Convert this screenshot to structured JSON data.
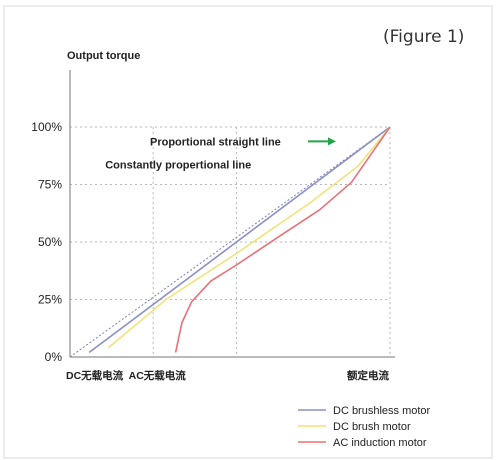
{
  "figure_label": "(Figure 1)",
  "chart_data": {
    "type": "line",
    "title": "",
    "ylabel": "Output torque",
    "xlabel": "",
    "ylim": [
      0,
      100
    ],
    "xlim": [
      0,
      100
    ],
    "yticks": [
      {
        "value": 0,
        "label": "0%"
      },
      {
        "value": 25,
        "label": "25%"
      },
      {
        "value": 50,
        "label": "50%"
      },
      {
        "value": 75,
        "label": "75%"
      },
      {
        "value": 100,
        "label": "100%"
      }
    ],
    "xticks": [
      {
        "value": 0,
        "label": "DC无载电流"
      },
      {
        "value": 26,
        "label": "AC无载电流"
      },
      {
        "value": 100,
        "label": "额定电流"
      }
    ],
    "vgridlines": [
      26,
      52,
      100
    ],
    "annotations": [
      {
        "text": "Proportional straight line",
        "x": 25,
        "y": 92,
        "arrow": true
      },
      {
        "text": "Constantly propertional line",
        "x": 11,
        "y": 82,
        "arrow": false
      }
    ],
    "reference_line": {
      "x": [
        0,
        100
      ],
      "y": [
        0,
        100
      ],
      "style": "dashed"
    },
    "series": [
      {
        "name": "DC brushless motor",
        "color": "#8a90c8",
        "x": [
          6,
          100
        ],
        "y": [
          2,
          100
        ]
      },
      {
        "name": "DC brush motor",
        "color": "#f2e27a",
        "x": [
          12,
          30,
          52,
          75,
          90,
          100
        ],
        "y": [
          4,
          25,
          45,
          67,
          83,
          100
        ]
      },
      {
        "name": "AC induction motor",
        "color": "#e8707a",
        "x": [
          33,
          35,
          38,
          44,
          52,
          66,
          78,
          88,
          100
        ],
        "y": [
          2,
          15,
          24,
          33,
          40,
          53,
          64,
          76,
          100
        ]
      }
    ],
    "legend_position": "bottom-right",
    "grid": true
  }
}
